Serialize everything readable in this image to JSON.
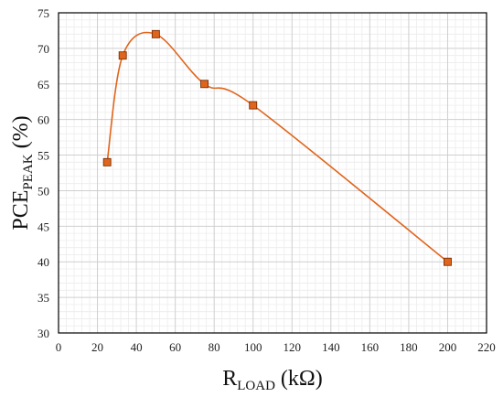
{
  "chart_data": {
    "type": "scatter",
    "title": "",
    "xlabel": {
      "main": "R",
      "sub": "LOAD",
      "unit": " (kΩ)"
    },
    "ylabel": {
      "main": "PCE",
      "sub": "PEAK",
      "unit": " (%)"
    },
    "xlim": [
      0,
      220
    ],
    "ylim": [
      30,
      75
    ],
    "x_ticks": [
      0,
      20,
      40,
      60,
      80,
      100,
      120,
      140,
      160,
      180,
      200,
      220
    ],
    "y_ticks": [
      30,
      35,
      40,
      45,
      50,
      55,
      60,
      65,
      70,
      75
    ],
    "x_minor_step": 4,
    "y_minor_step": 1,
    "grid": true,
    "line": "smoothed",
    "series": [
      {
        "x": [
          25,
          33,
          50,
          75,
          100,
          200
        ],
        "y": [
          54,
          69,
          72,
          65,
          62,
          40
        ],
        "line_color": "#e0651c",
        "marker_fill": "#e0651c",
        "marker_edge": "#7a2f06",
        "marker": "square"
      }
    ]
  }
}
